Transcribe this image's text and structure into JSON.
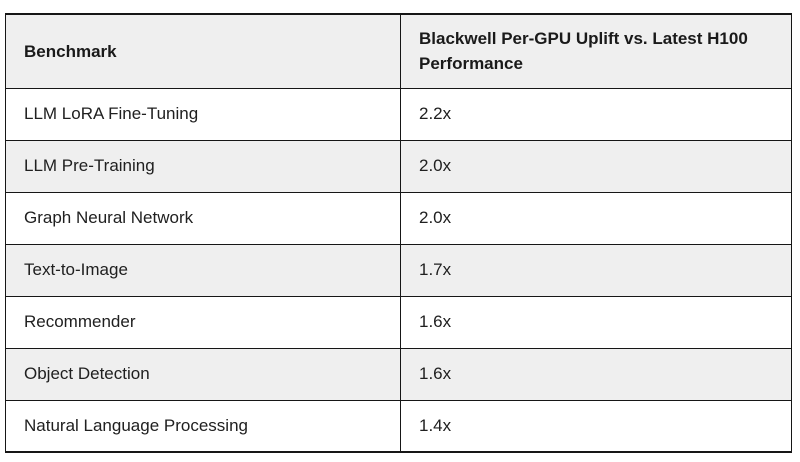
{
  "page": {
    "background_color": "#ffffff"
  },
  "benchmark_table": {
    "headers": {
      "benchmark": "Benchmark",
      "uplift": "Blackwell Per-GPU Uplift vs. Latest H100\nPerformance"
    },
    "rows": [
      {
        "benchmark": "LLM LoRA Fine-Tuning",
        "uplift": "2.2x"
      },
      {
        "benchmark": "LLM Pre-Training",
        "uplift": "2.0x"
      },
      {
        "benchmark": "Graph Neural Network",
        "uplift": "2.0x"
      },
      {
        "benchmark": "Text-to-Image",
        "uplift": "1.7x"
      },
      {
        "benchmark": "Recommender",
        "uplift": "1.6x"
      },
      {
        "benchmark": "Object Detection",
        "uplift": "1.6x"
      },
      {
        "benchmark": "Natural Language Processing",
        "uplift": "1.4x"
      }
    ],
    "colors": {
      "header_background": "#efefef",
      "stripe_background": "#efefef",
      "row_background": "#ffffff",
      "border": "#161616",
      "text": "#202020"
    }
  }
}
